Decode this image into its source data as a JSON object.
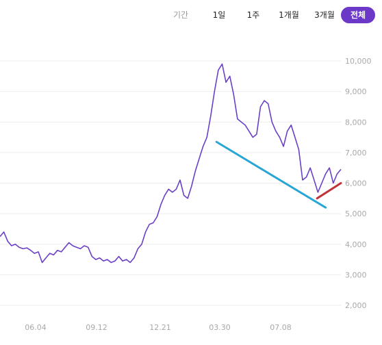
{
  "toolbar": {
    "label": "기간",
    "buttons": [
      "1일",
      "1주",
      "1개월",
      "3개월",
      "전체"
    ],
    "active": "전체"
  },
  "colors": {
    "price_line": "#6a3fc6",
    "trend_down": "#2aa6d4",
    "trend_up": "#c0323a",
    "grid": "#ececec",
    "tick_text": "#a8a8a8",
    "active_button": "#6c38c8"
  },
  "chart_data": {
    "type": "line",
    "ylim": [
      2000,
      10000
    ],
    "ytick_labels": [
      "10,000",
      "9,000",
      "8,000",
      "7,000",
      "6,000",
      "5,000",
      "4,000",
      "3,000",
      "2,000"
    ],
    "yticks": [
      10000,
      9000,
      8000,
      7000,
      6000,
      5000,
      4000,
      3000,
      2000
    ],
    "xtick_labels": [
      "06.04",
      "09.12",
      "12.21",
      "03.30",
      "07.08"
    ],
    "grid": "horizontal",
    "series": [
      {
        "values": [
          4250,
          4400,
          4100,
          3950,
          4000,
          3900,
          3850,
          3880,
          3800,
          3700,
          3750,
          3400,
          3550,
          3700,
          3650,
          3800,
          3750,
          3900,
          4050,
          3950,
          3900,
          3850,
          3950,
          3900,
          3600,
          3500,
          3550,
          3450,
          3500,
          3400,
          3450,
          3600,
          3450,
          3500,
          3400,
          3550,
          3850,
          4000,
          4400,
          4650,
          4700,
          4900,
          5300,
          5600,
          5800,
          5700,
          5800,
          6100,
          5600,
          5500,
          5900,
          6400,
          6800,
          7200,
          7500,
          8200,
          9000,
          9700,
          9900,
          9300,
          9500,
          8900,
          8100,
          8000,
          7900,
          7700,
          7500,
          7600,
          8500,
          8700,
          8600,
          8000,
          7700,
          7500,
          7200,
          7700,
          7900,
          7500,
          7100,
          6100,
          6200,
          6500,
          6100,
          5700,
          6000,
          6300,
          6500,
          6000,
          6300,
          6450
        ]
      }
    ],
    "trend_lines": [
      {
        "name": "downtrend",
        "color": "#2aa6d4",
        "points": [
          [
            0.635,
            7350
          ],
          [
            0.955,
            5200
          ]
        ]
      },
      {
        "name": "uptrend",
        "color": "#c0323a",
        "points": [
          [
            0.93,
            5500
          ],
          [
            1.0,
            6000
          ]
        ]
      }
    ]
  }
}
